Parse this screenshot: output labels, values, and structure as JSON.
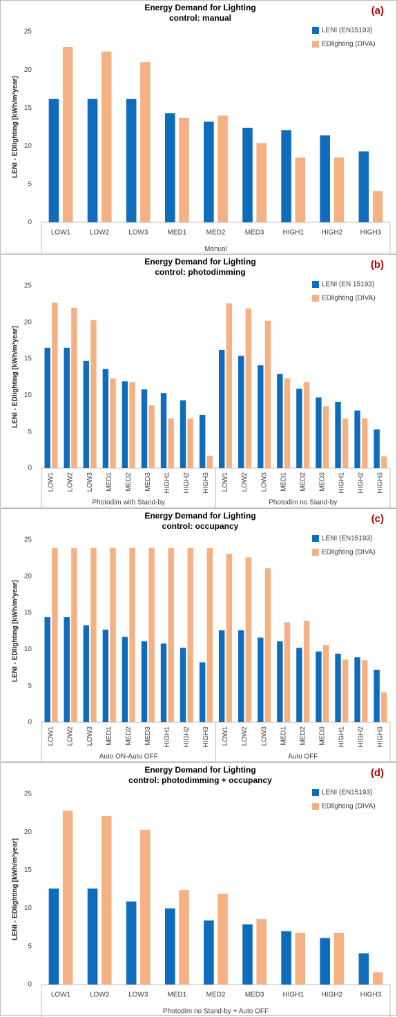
{
  "chart_data": [
    {
      "type": "bar",
      "title": "Energy Demand for Lighting",
      "subtitle": "control: manual",
      "panel_label": "(a)",
      "ylabel": "LENI - EDlighting [kWh/m²year]",
      "categories": [
        "LOW1",
        "LOW2",
        "LOW3",
        "MED1",
        "MED2",
        "MED3",
        "HIGH1",
        "HIGH2",
        "HIGH3"
      ],
      "groups": [
        "Manual"
      ],
      "series": [
        {
          "name": "LENI (EN15193)",
          "color": "#0f6cbd",
          "values": [
            16.2,
            16.2,
            16.2,
            14.3,
            13.2,
            12.4,
            12.1,
            11.4,
            9.3
          ]
        },
        {
          "name": "EDlighting (DIVA)",
          "color": "#f4b183",
          "values": [
            23,
            22.4,
            21,
            13.7,
            14,
            10.4,
            8.5,
            8.5,
            4.1
          ]
        }
      ],
      "ylim": [
        0,
        25
      ],
      "yticks": [
        0,
        5,
        10,
        15,
        20,
        25
      ],
      "legend": "upper right"
    },
    {
      "type": "bar",
      "title": "Energy Demand for Lighting",
      "subtitle": "control: photodimming",
      "panel_label": "(b)",
      "ylabel": "LENI - EDlighting [kWh/m²year]",
      "categories": [
        "LOW1",
        "LOW2",
        "LOW3",
        "MED1",
        "MED2",
        "MED3",
        "HIGH1",
        "HIGH2",
        "HIGH3",
        "LOW1",
        "LOW2",
        "LOW3",
        "MED1",
        "MED2",
        "MED3",
        "HIGH1",
        "HIGH2",
        "HIGH3"
      ],
      "groups": [
        "Photodim with Stand-by",
        "Photodim no Stand-by"
      ],
      "series": [
        {
          "name": "LENI (EN 15193)",
          "color": "#0f6cbd",
          "values": [
            16.5,
            16.5,
            14.7,
            13.6,
            11.9,
            10.8,
            10.3,
            9.3,
            7.3,
            16.2,
            15.4,
            14.1,
            12.9,
            10.9,
            9.7,
            9.1,
            7.9,
            5.3
          ]
        },
        {
          "name": "EDlighting (DIVA)",
          "color": "#f4b183",
          "values": [
            22.7,
            22,
            20.3,
            12.3,
            11.8,
            8.6,
            6.8,
            6.8,
            1.7,
            22.6,
            21.9,
            20.2,
            12.3,
            11.8,
            8.5,
            6.8,
            6.8,
            1.6
          ]
        }
      ],
      "ylim": [
        0,
        25
      ],
      "yticks": [
        0,
        5,
        10,
        15,
        20,
        25
      ],
      "legend": "upper right"
    },
    {
      "type": "bar",
      "title": "Energy Demand for Lighting",
      "subtitle": "control: occupancy",
      "panel_label": "(c)",
      "ylabel": "LENI - EDlighting [kWh/m²year]",
      "categories": [
        "LOW1",
        "LOW2",
        "LOW3",
        "MED1",
        "MED2",
        "MED3",
        "HIGH1",
        "HIGH2",
        "HIGH3",
        "LOW1",
        "LOW2",
        "LOW3",
        "MED1",
        "MED2",
        "MED3",
        "HIGH1",
        "HIGH2",
        "HIGH3"
      ],
      "groups": [
        "Auto ON-Auto OFF",
        "Auto OFF"
      ],
      "series": [
        {
          "name": "LENI (EN15193)",
          "color": "#0f6cbd",
          "values": [
            14.4,
            14.4,
            13.3,
            12.7,
            11.7,
            11.1,
            10.8,
            10.2,
            8.2,
            12.6,
            12.6,
            11.6,
            11.1,
            10.2,
            9.7,
            9.4,
            8.9,
            7.2
          ]
        },
        {
          "name": "EDlighting (DIVA)",
          "color": "#f4b183",
          "values": [
            23.9,
            23.9,
            23.9,
            23.9,
            23.9,
            23.9,
            23.9,
            23.9,
            23.9,
            23.1,
            22.6,
            21.1,
            13.7,
            13.9,
            10.6,
            8.6,
            8.5,
            4.1
          ]
        }
      ],
      "ylim": [
        0,
        25
      ],
      "yticks": [
        0,
        5,
        10,
        15,
        20,
        25
      ],
      "legend": "upper right"
    },
    {
      "type": "bar",
      "title": "Energy Demand for Lighting",
      "subtitle": "control: photodimming + occupancy",
      "panel_label": "(d)",
      "ylabel": "LENI - EDlighting [kWh/m²year]",
      "categories": [
        "LOW1",
        "LOW2",
        "LOW3",
        "MED1",
        "MED2",
        "MED3",
        "HIGH1",
        "HIGH2",
        "HIGH3"
      ],
      "groups": [
        "Photodim no Stand-by + Auto OFF"
      ],
      "series": [
        {
          "name": "LENI (EN15193)",
          "color": "#0f6cbd",
          "values": [
            12.6,
            12.6,
            10.9,
            10,
            8.4,
            7.9,
            7,
            6.1,
            4.1
          ]
        },
        {
          "name": "EDlighting (DIVA)",
          "color": "#f4b183",
          "values": [
            22.8,
            22.1,
            20.3,
            12.4,
            11.9,
            8.6,
            6.8,
            6.8,
            1.6
          ]
        }
      ],
      "ylim": [
        0,
        25
      ],
      "yticks": [
        0,
        5,
        10,
        15,
        20,
        25
      ],
      "legend": "upper right"
    }
  ]
}
